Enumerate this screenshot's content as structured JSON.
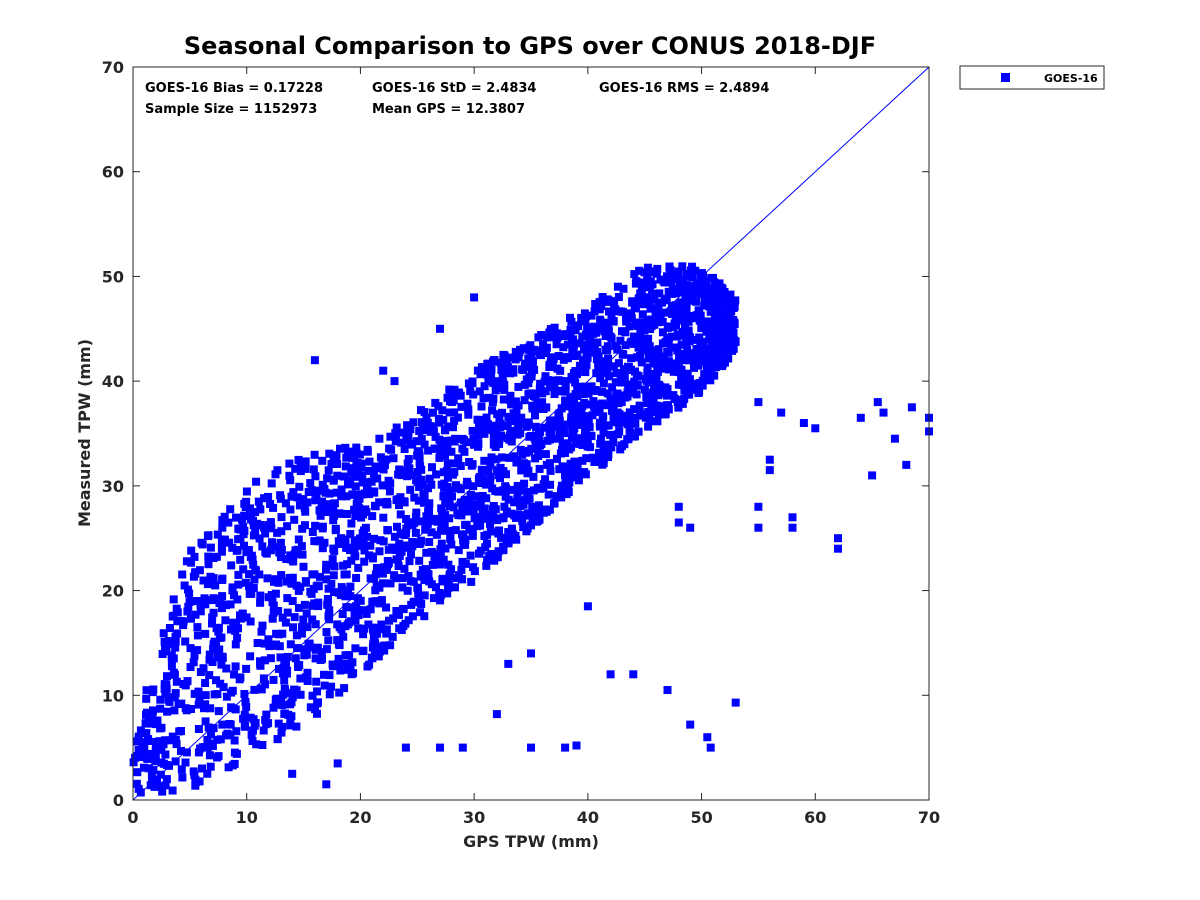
{
  "chart_data": {
    "type": "scatter",
    "title": "Seasonal Comparison to GPS over CONUS 2018-DJF",
    "xlabel": "GPS TPW (mm)",
    "ylabel": "Measured TPW (mm)",
    "xlim": [
      0,
      70
    ],
    "ylim": [
      0,
      70
    ],
    "xticks": [
      "0",
      "10",
      "20",
      "30",
      "40",
      "50",
      "60",
      "70"
    ],
    "yticks": [
      "0",
      "10",
      "20",
      "30",
      "40",
      "50",
      "60",
      "70"
    ],
    "grid": false,
    "legend_position": "outside-top-right",
    "series_color": "#0000ff",
    "series": [
      {
        "name": "GOES-16",
        "marker": "square",
        "description": "dense cloud of 1152973 points clustered along 1:1 line",
        "density_band": [
          {
            "x": 0,
            "y_low": 0.5,
            "y_high": 7
          },
          {
            "x": 5,
            "y_low": 1,
            "y_high": 24
          },
          {
            "x": 10,
            "y_low": 4,
            "y_high": 30
          },
          {
            "x": 15,
            "y_low": 7,
            "y_high": 33
          },
          {
            "x": 20,
            "y_low": 12,
            "y_high": 34
          },
          {
            "x": 25,
            "y_low": 17,
            "y_high": 37
          },
          {
            "x": 30,
            "y_low": 21,
            "y_high": 41
          },
          {
            "x": 35,
            "y_low": 26,
            "y_high": 44
          },
          {
            "x": 40,
            "y_low": 31,
            "y_high": 47
          },
          {
            "x": 45,
            "y_low": 35,
            "y_high": 51
          },
          {
            "x": 50,
            "y_low": 39,
            "y_high": 51
          },
          {
            "x": 53,
            "y_low": 43,
            "y_high": 48
          }
        ],
        "outliers": [
          [
            16,
            42
          ],
          [
            22,
            41
          ],
          [
            23,
            40
          ],
          [
            27,
            45
          ],
          [
            30,
            48
          ],
          [
            55,
            38
          ],
          [
            57,
            37
          ],
          [
            59,
            36
          ],
          [
            60,
            35.5
          ],
          [
            62,
            25
          ],
          [
            62,
            24
          ],
          [
            64,
            36.5
          ],
          [
            65,
            31
          ],
          [
            65.5,
            38
          ],
          [
            66,
            37
          ],
          [
            67,
            34.5
          ],
          [
            68,
            32
          ],
          [
            68.5,
            37.5
          ],
          [
            70,
            36.5
          ],
          [
            70,
            35.2
          ],
          [
            58,
            27
          ],
          [
            58,
            26
          ],
          [
            55,
            28
          ],
          [
            55,
            26
          ],
          [
            56,
            32.5
          ],
          [
            56,
            31.5
          ],
          [
            47,
            10.5
          ],
          [
            49,
            7.2
          ],
          [
            50.5,
            6
          ],
          [
            50.8,
            5
          ],
          [
            53,
            9.3
          ],
          [
            42,
            12
          ],
          [
            40,
            18.5
          ],
          [
            44,
            12
          ],
          [
            35,
            14
          ],
          [
            33,
            13
          ],
          [
            32,
            8.2
          ],
          [
            35,
            5
          ],
          [
            38,
            5
          ],
          [
            39,
            5.2
          ],
          [
            24,
            5
          ],
          [
            27,
            5
          ],
          [
            29,
            5
          ],
          [
            14,
            2.5
          ],
          [
            17,
            1.5
          ],
          [
            18,
            3.5
          ],
          [
            48,
            26.5
          ],
          [
            49,
            26
          ],
          [
            48,
            28
          ]
        ]
      }
    ],
    "reference_line": {
      "name": "1:1",
      "from": [
        0,
        0
      ],
      "to": [
        70,
        70
      ]
    },
    "annotations": [
      {
        "text": "GOES-16 Bias = 0.17228",
        "row": 1,
        "col": 1
      },
      {
        "text": "GOES-16 StD = 2.4834",
        "row": 1,
        "col": 2
      },
      {
        "text": "GOES-16 RMS = 2.4894",
        "row": 1,
        "col": 3
      },
      {
        "text": "Sample Size = 1152973",
        "row": 2,
        "col": 1
      },
      {
        "text": "Mean GPS = 12.3807",
        "row": 2,
        "col": 2
      }
    ]
  }
}
